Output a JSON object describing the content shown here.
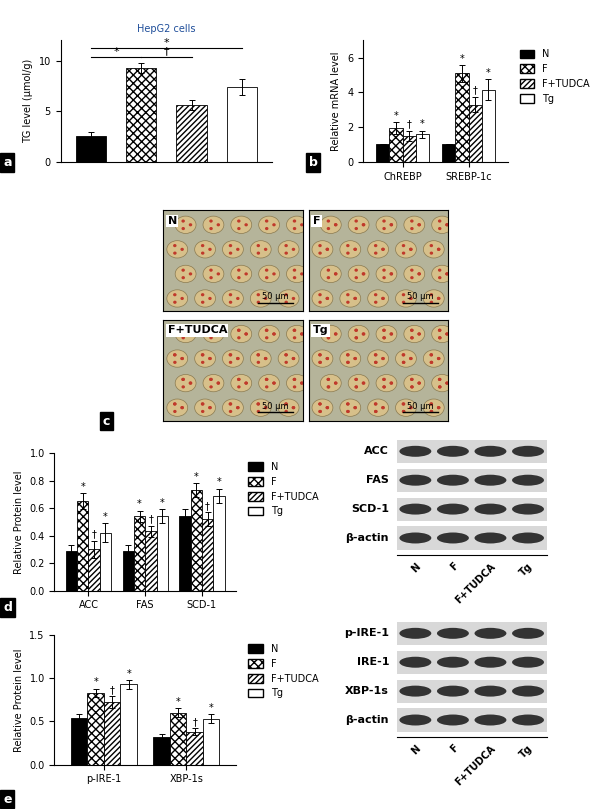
{
  "chart_data": [
    {
      "type": "bar",
      "panel": "a",
      "title": "HepG2 cells",
      "y_label": "TG level (μmol/g)",
      "categories": [
        "N",
        "F",
        "F+TUDCA",
        "Tg"
      ],
      "values": [
        2.6,
        9.3,
        5.6,
        7.4
      ],
      "errors": [
        0.3,
        0.5,
        0.5,
        0.8
      ],
      "colors": [
        "#000000",
        "#ffffff",
        "#ffffff",
        "#ffffff"
      ],
      "ylim": [
        0,
        12
      ],
      "yticks": [
        0,
        5,
        10
      ],
      "tick_labels": "y",
      "brackets": [
        {
          "from": "N",
          "to": "F",
          "label": "*"
        },
        {
          "from": "F",
          "to": "F+TUDCA",
          "label": "†"
        },
        {
          "from": "N",
          "to": "Tg",
          "label": "*"
        }
      ]
    },
    {
      "type": "bar",
      "panel": "b",
      "y_label": "Relative mRNA level",
      "categories": [
        "ChREBP",
        "SREBP-1c"
      ],
      "legend": "upper left",
      "ylim": [
        0,
        7
      ],
      "yticks": [
        0,
        2,
        4,
        6
      ],
      "series": [
        {
          "name": "N",
          "color": "#000000",
          "values": [
            1.0,
            1.0
          ],
          "errors": [
            0.0,
            0.0
          ],
          "marks": [
            "",
            ""
          ]
        },
        {
          "name": "F",
          "color": "#ffffff",
          "values": [
            1.95,
            5.1
          ],
          "errors": [
            0.35,
            0.5
          ],
          "marks": [
            "*",
            "*"
          ]
        },
        {
          "name": "F+TUDCA",
          "color": "#ffffff",
          "values": [
            1.5,
            3.3
          ],
          "errors": [
            0.3,
            0.45
          ],
          "marks": [
            "†",
            "†"
          ]
        },
        {
          "name": "Tg",
          "color": "#ffffff",
          "values": [
            1.6,
            4.15
          ],
          "errors": [
            0.2,
            0.6
          ],
          "marks": [
            "*",
            "*"
          ]
        }
      ]
    },
    {
      "type": "bar",
      "panel": "d",
      "y_label": "Relative Protein level",
      "categories": [
        "ACC",
        "FAS",
        "SCD-1"
      ],
      "legend": "upper left",
      "ylim": [
        0,
        1.0
      ],
      "yticks": [
        {
          "value": 0,
          "label": "0.0"
        },
        {
          "value": 0.2,
          "label": "0.2"
        },
        {
          "value": 0.4,
          "label": "0.4"
        },
        {
          "value": 0.6,
          "label": "0.6"
        },
        {
          "value": 0.8,
          "label": "0.8"
        },
        {
          "value": 1.0,
          "label": "1.0"
        }
      ],
      "series": [
        {
          "name": "N",
          "color": "#000000",
          "values": [
            0.29,
            0.29,
            0.54
          ],
          "errors": [
            0.04,
            0.04,
            0.05
          ],
          "marks": [
            "",
            "",
            ""
          ]
        },
        {
          "name": "F",
          "color": "#ffffff",
          "values": [
            0.65,
            0.54,
            0.73
          ],
          "errors": [
            0.06,
            0.04,
            0.05
          ],
          "marks": [
            "*",
            "*",
            "*"
          ]
        },
        {
          "name": "F+TUDCA",
          "color": "#ffffff",
          "values": [
            0.3,
            0.43,
            0.52
          ],
          "errors": [
            0.06,
            0.04,
            0.05
          ],
          "marks": [
            "†",
            "†",
            "†"
          ]
        },
        {
          "name": "Tg",
          "color": "#ffffff",
          "values": [
            0.42,
            0.54,
            0.69
          ],
          "errors": [
            0.07,
            0.05,
            0.05
          ],
          "marks": [
            "*",
            "*",
            "*"
          ]
        }
      ]
    },
    {
      "type": "bar",
      "panel": "e",
      "y_label": "Relative Protein level",
      "categories": [
        "p-IRE-1",
        "XBP-1s"
      ],
      "legend": "upper left",
      "ylim": [
        0,
        1.5
      ],
      "yticks": [
        {
          "value": 0,
          "label": "0.0"
        },
        {
          "value": 0.5,
          "label": "0.5"
        },
        {
          "value": 1.0,
          "label": "1.0"
        },
        {
          "value": 1.5,
          "label": "1.5"
        }
      ],
      "series": [
        {
          "name": "N",
          "color": "#000000",
          "values": [
            0.54,
            0.32
          ],
          "errors": [
            0.05,
            0.03
          ],
          "marks": [
            "",
            ""
          ]
        },
        {
          "name": "F",
          "color": "#ffffff",
          "values": [
            0.83,
            0.6
          ],
          "errors": [
            0.05,
            0.05
          ],
          "marks": [
            "*",
            "*"
          ]
        },
        {
          "name": "F+TUDCA",
          "color": "#ffffff",
          "values": [
            0.72,
            0.38
          ],
          "errors": [
            0.07,
            0.04
          ],
          "marks": [
            "†",
            "†"
          ]
        },
        {
          "name": "Tg",
          "color": "#ffffff",
          "values": [
            0.93,
            0.53
          ],
          "errors": [
            0.05,
            0.05
          ],
          "marks": [
            "*",
            "*"
          ]
        }
      ]
    }
  ],
  "micrographs": {
    "panel": "c",
    "images": [
      {
        "label": "N",
        "scale_bar": "50 μm"
      },
      {
        "label": "F",
        "scale_bar": "50 μm"
      },
      {
        "label": "F+TUDCA",
        "scale_bar": "50 μm"
      },
      {
        "label": "Tg",
        "scale_bar": "50 μm"
      }
    ]
  },
  "blots": [
    {
      "panel": "d",
      "rows": [
        "ACC",
        "FAS",
        "SCD-1",
        "β-actin"
      ],
      "lanes": [
        "N",
        "F",
        "F+TUDCA",
        "Tg"
      ]
    },
    {
      "panel": "e",
      "rows": [
        "p-IRE-1",
        "IRE-1",
        "XBP-1s",
        "β-actin"
      ],
      "lanes": [
        "N",
        "F",
        "F+TUDCA",
        "Tg"
      ]
    }
  ]
}
